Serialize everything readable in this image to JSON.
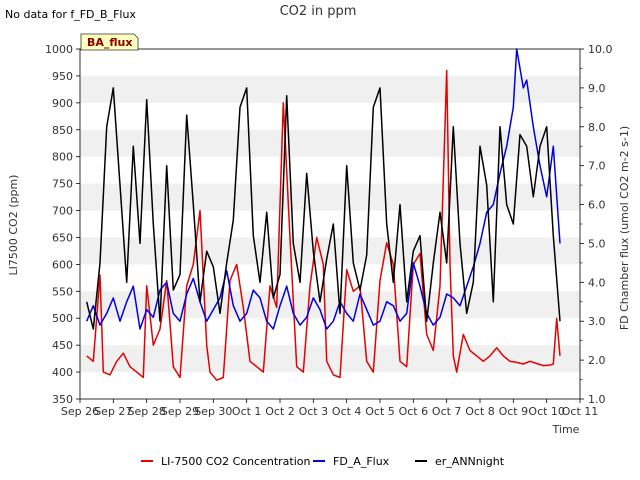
{
  "no_data_note": "No data for f_FD_B_Flux",
  "badge": "BA_flux",
  "chart_data": {
    "type": "line",
    "title": "CO2 in ppm",
    "xlabel": "Time",
    "ylabel_left": "LI7500 CO2 (ppm)",
    "ylabel_right": "FD Chamber flux (umol CO2 m-2 s-1)",
    "xlim": [
      0,
      15
    ],
    "ylim_left": [
      350,
      1000
    ],
    "ylim_right": [
      1.0,
      10.0
    ],
    "x_ticks": [
      0,
      1,
      2,
      3,
      4,
      5,
      6,
      7,
      8,
      9,
      10,
      11,
      12,
      13,
      14,
      15
    ],
    "x_tick_labels": [
      "Sep 26",
      "Sep 27",
      "Sep 28",
      "Sep 29",
      "Sep 30",
      "Oct 1",
      "Oct 2",
      "Oct 3",
      "Oct 4",
      "Oct 5",
      "Oct 6",
      "Oct 7",
      "Oct 8",
      "Oct 9",
      "Oct 10",
      "Oct 11"
    ],
    "y_left_ticks": [
      350,
      400,
      450,
      500,
      550,
      600,
      650,
      700,
      750,
      800,
      850,
      900,
      950,
      1000
    ],
    "y_left_tick_labels": [
      "350",
      "400",
      "450",
      "500",
      "550",
      "600",
      "650",
      "700",
      "750",
      "800",
      "850",
      "900",
      "950",
      "1000"
    ],
    "y_right_ticks": [
      1,
      2,
      3,
      4,
      5,
      6,
      7,
      8,
      9,
      10
    ],
    "y_right_tick_labels": [
      "1.0",
      "2.0",
      "3.0",
      "4.0",
      "5.0",
      "6.0",
      "7.0",
      "8.0",
      "9.0",
      "10.0"
    ],
    "legend": [
      "LI-7500 CO2 Concentration",
      "FD_A_Flux",
      "er_ANNnight"
    ],
    "legend_position": "bottom-center",
    "series": [
      {
        "name": "LI-7500 CO2 Concentration",
        "axis": "left",
        "color": "#e60000",
        "x": [
          0.2,
          0.4,
          0.6,
          0.7,
          0.9,
          1.1,
          1.3,
          1.5,
          1.7,
          1.9,
          2.0,
          2.2,
          2.4,
          2.6,
          2.8,
          3.0,
          3.2,
          3.4,
          3.6,
          3.8,
          3.9,
          4.1,
          4.3,
          4.5,
          4.7,
          4.9,
          5.1,
          5.3,
          5.5,
          5.7,
          5.9,
          6.1,
          6.3,
          6.5,
          6.7,
          6.9,
          7.1,
          7.3,
          7.4,
          7.6,
          7.8,
          8.0,
          8.2,
          8.4,
          8.6,
          8.8,
          9.0,
          9.2,
          9.4,
          9.6,
          9.8,
          10.0,
          10.2,
          10.4,
          10.6,
          10.8,
          11.0,
          11.1,
          11.2,
          11.3,
          11.5,
          11.7,
          11.9,
          12.1,
          12.3,
          12.5,
          12.7,
          12.9,
          13.1,
          13.3,
          13.5,
          13.7,
          13.9,
          14.1,
          14.2,
          14.3,
          14.4
        ],
        "values": [
          430,
          420,
          580,
          400,
          395,
          420,
          435,
          410,
          400,
          390,
          560,
          450,
          480,
          570,
          410,
          390,
          560,
          600,
          700,
          450,
          400,
          385,
          390,
          570,
          600,
          520,
          420,
          410,
          400,
          560,
          520,
          900,
          650,
          410,
          400,
          560,
          650,
          600,
          420,
          395,
          390,
          590,
          550,
          560,
          420,
          400,
          570,
          640,
          600,
          420,
          410,
          600,
          620,
          470,
          440,
          560,
          960,
          600,
          430,
          400,
          470,
          440,
          430,
          420,
          430,
          445,
          430,
          420,
          418,
          415,
          420,
          416,
          412,
          413,
          415,
          500,
          430
        ]
      },
      {
        "name": "FD_A_Flux",
        "axis": "right",
        "color": "#0000e6",
        "x": [
          0.2,
          0.4,
          0.6,
          0.8,
          1.0,
          1.2,
          1.4,
          1.6,
          1.8,
          2.0,
          2.2,
          2.4,
          2.6,
          2.8,
          3.0,
          3.2,
          3.4,
          3.6,
          3.8,
          4.0,
          4.2,
          4.4,
          4.6,
          4.8,
          5.0,
          5.2,
          5.4,
          5.6,
          5.8,
          6.0,
          6.2,
          6.4,
          6.6,
          6.8,
          7.0,
          7.2,
          7.4,
          7.6,
          7.8,
          8.0,
          8.2,
          8.4,
          8.6,
          8.8,
          9.0,
          9.2,
          9.4,
          9.6,
          9.8,
          10.0,
          10.2,
          10.4,
          10.6,
          10.8,
          11.0,
          11.2,
          11.4,
          11.6,
          11.8,
          12.0,
          12.2,
          12.4,
          12.6,
          12.8,
          13.0,
          13.1,
          13.2,
          13.3,
          13.4,
          13.6,
          13.8,
          14.0,
          14.2,
          14.4
        ],
        "values": [
          3.0,
          3.4,
          2.9,
          3.2,
          3.6,
          3.0,
          3.5,
          3.9,
          2.8,
          3.3,
          3.1,
          3.8,
          4.0,
          3.2,
          3.0,
          3.7,
          4.1,
          3.5,
          3.0,
          3.3,
          3.6,
          4.3,
          3.4,
          3.0,
          3.2,
          3.8,
          3.6,
          3.0,
          2.8,
          3.4,
          3.9,
          3.2,
          2.9,
          3.1,
          3.6,
          3.3,
          2.8,
          3.0,
          3.5,
          3.2,
          3.0,
          3.7,
          3.3,
          2.9,
          3.0,
          3.5,
          3.4,
          3.0,
          3.2,
          4.5,
          3.9,
          3.2,
          2.9,
          3.1,
          3.7,
          3.6,
          3.4,
          3.9,
          4.4,
          5.0,
          5.8,
          6.0,
          6.8,
          7.5,
          8.5,
          10.0,
          9.5,
          9.0,
          9.2,
          8.0,
          7.0,
          6.2,
          7.5,
          5.0
        ]
      },
      {
        "name": "er_ANNnight",
        "axis": "right",
        "color": "#000000",
        "x": [
          0.2,
          0.4,
          0.6,
          0.8,
          1.0,
          1.2,
          1.4,
          1.6,
          1.8,
          2.0,
          2.2,
          2.4,
          2.6,
          2.8,
          3.0,
          3.2,
          3.4,
          3.6,
          3.8,
          4.0,
          4.2,
          4.4,
          4.6,
          4.8,
          5.0,
          5.2,
          5.4,
          5.6,
          5.8,
          6.0,
          6.2,
          6.4,
          6.6,
          6.8,
          7.0,
          7.2,
          7.4,
          7.6,
          7.8,
          8.0,
          8.2,
          8.4,
          8.6,
          8.8,
          9.0,
          9.2,
          9.4,
          9.6,
          9.8,
          10.0,
          10.2,
          10.4,
          10.6,
          10.8,
          11.0,
          11.2,
          11.4,
          11.6,
          11.8,
          12.0,
          12.2,
          12.4,
          12.6,
          12.8,
          13.0,
          13.2,
          13.4,
          13.6,
          13.8,
          14.0,
          14.2,
          14.4
        ],
        "values": [
          3.5,
          2.8,
          4.5,
          8.0,
          9.0,
          6.5,
          4.0,
          7.5,
          5.0,
          8.7,
          5.5,
          3.0,
          7.0,
          3.8,
          4.2,
          8.3,
          6.0,
          3.5,
          4.8,
          4.4,
          3.2,
          4.5,
          5.6,
          8.5,
          9.0,
          5.2,
          4.0,
          5.8,
          3.6,
          4.2,
          8.8,
          5.0,
          4.0,
          6.8,
          4.8,
          3.5,
          4.6,
          5.5,
          3.2,
          7.0,
          4.5,
          3.8,
          4.7,
          8.5,
          9.0,
          5.5,
          4.0,
          6.0,
          3.5,
          4.8,
          5.2,
          3.0,
          4.5,
          5.8,
          4.5,
          8.0,
          5.0,
          3.2,
          4.0,
          7.5,
          6.5,
          3.5,
          8.0,
          6.0,
          5.5,
          7.8,
          7.5,
          6.2,
          7.5,
          8.0,
          5.2,
          3.0
        ]
      }
    ]
  }
}
